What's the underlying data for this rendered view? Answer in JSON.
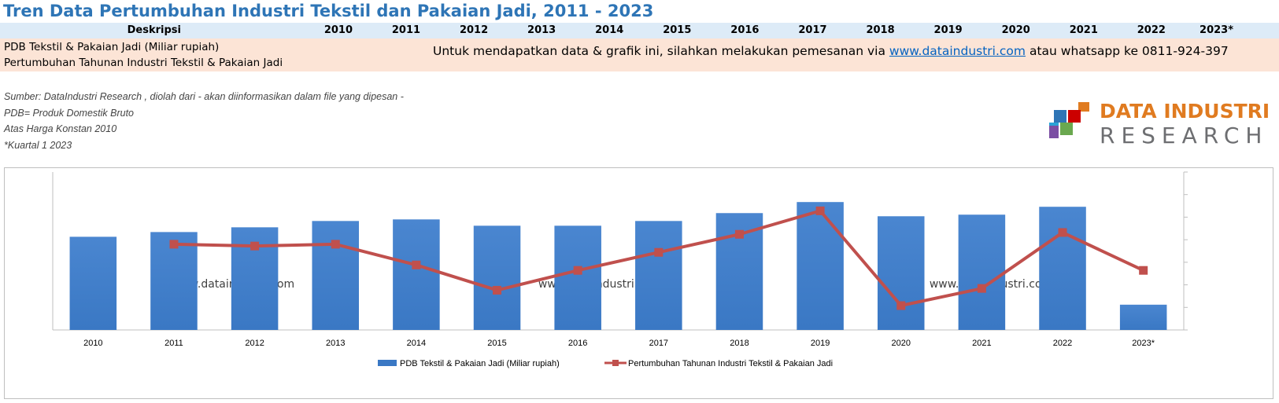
{
  "title": "Tren Data Pertumbuhan Industri Tekstil dan Pakaian Jadi, 2011 - 2023",
  "table": {
    "header_label": "Deskripsi",
    "years": [
      "2010",
      "2011",
      "2012",
      "2013",
      "2014",
      "2015",
      "2016",
      "2017",
      "2018",
      "2019",
      "2020",
      "2021",
      "2022",
      "2023*"
    ],
    "rows": [
      "PDB Tekstil & Pakaian Jadi (Miliar rupiah)",
      "Pertumbuhan Tahunan Industri Tekstil & Pakaian Jadi"
    ],
    "order_note_prefix": "Untuk mendapatkan data & grafik ini, silahkan melakukan pemesanan via",
    "order_note_link": "www.dataindustri.com",
    "order_note_suffix": "atau whatsapp ke 0811-924-397"
  },
  "notes": [
    "Sumber: DataIndustri Research , diolah dari - akan diinformasikan dalam file yang dipesan -",
    "PDB= Produk Domestik Bruto",
    "Atas Harga Konstan 2010",
    "*Kuartal 1 2023"
  ],
  "logo": {
    "line1": "DATA INDUSTRI",
    "line2": "RESEARCH",
    "colors": [
      "#e07b20",
      "#2e75b6",
      "#6aa84f",
      "#cc0000",
      "#7b4ea3",
      "#29a3d6"
    ]
  },
  "chart_data": {
    "type": "bar",
    "categories": [
      "2010",
      "2011",
      "2012",
      "2013",
      "2014",
      "2015",
      "2016",
      "2017",
      "2018",
      "2019",
      "2020",
      "2021",
      "2022",
      "2023*"
    ],
    "series": [
      {
        "name": "PDB Tekstil & Pakaian Jadi (Miliar rupiah)",
        "type": "bar",
        "axis": "left",
        "color": "#3a78c4",
        "values": [
          59,
          62,
          65,
          69,
          70,
          66,
          66,
          69,
          74,
          81,
          72,
          73,
          78,
          16
        ]
      },
      {
        "name": "Pertumbuhan Tahunan Industri Tekstil & Pakaian Jadi",
        "type": "line",
        "axis": "right",
        "color": "#c0504d",
        "values": [
          null,
          4.5,
          4.3,
          4.5,
          2.2,
          -0.6,
          1.6,
          3.6,
          5.6,
          8.2,
          -2.3,
          -0.4,
          5.8,
          1.6
        ]
      }
    ],
    "left_ylim": [
      0,
      100
    ],
    "right_ylim": [
      -5,
      12.5
    ],
    "watermark": "www.dataindustri.com",
    "gridlines": false,
    "legend_position": "bottom"
  }
}
